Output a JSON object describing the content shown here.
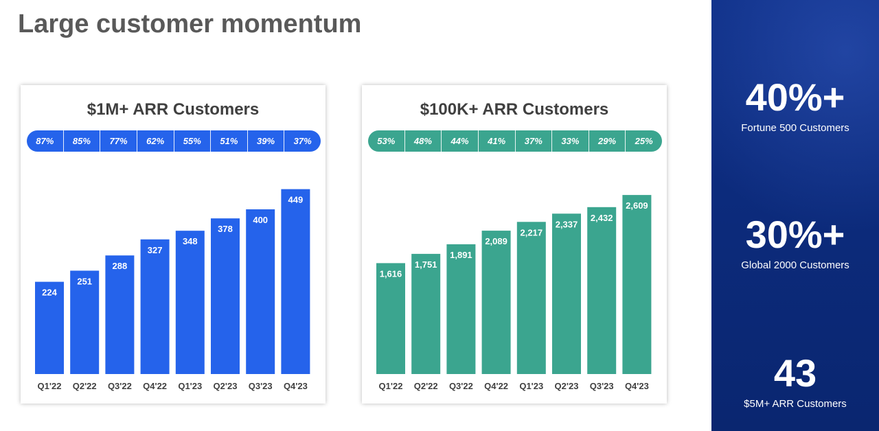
{
  "page": {
    "title": "Large customer momentum"
  },
  "colors": {
    "blue": "#2563eb",
    "teal": "#3ba58f",
    "panel": "#0b2a7a"
  },
  "sidebar": {
    "stats": [
      {
        "value": "40%+",
        "label": "Fortune 500 Customers"
      },
      {
        "value": "30%+",
        "label": "Global 2000 Customers"
      },
      {
        "value": "43",
        "label": "$5M+ ARR Customers"
      }
    ]
  },
  "chart_data": [
    {
      "type": "bar",
      "title": "$1M+ ARR Customers",
      "categories": [
        "Q1'22",
        "Q2'22",
        "Q3'22",
        "Q4'22",
        "Q1'23",
        "Q2'23",
        "Q3'23",
        "Q4'23"
      ],
      "values": [
        224,
        251,
        288,
        327,
        348,
        378,
        400,
        449
      ],
      "value_labels": [
        "224",
        "251",
        "288",
        "327",
        "348",
        "378",
        "400",
        "449"
      ],
      "growth_labels": [
        "87%",
        "85%",
        "77%",
        "62%",
        "55%",
        "51%",
        "39%",
        "37%"
      ],
      "ylim": [
        0,
        500
      ],
      "color": "#2563eb",
      "xlabel": "",
      "ylabel": "",
      "grid": false
    },
    {
      "type": "bar",
      "title": "$100K+ ARR Customers",
      "categories": [
        "Q1'22",
        "Q2'22",
        "Q3'22",
        "Q4'22",
        "Q1'23",
        "Q2'23",
        "Q3'23",
        "Q4'23"
      ],
      "values": [
        1616,
        1751,
        1891,
        2089,
        2217,
        2337,
        2432,
        2609
      ],
      "value_labels": [
        "1,616",
        "1,751",
        "1,891",
        "2,089",
        "2,217",
        "2,337",
        "2,432",
        "2,609"
      ],
      "growth_labels": [
        "53%",
        "48%",
        "44%",
        "41%",
        "37%",
        "33%",
        "29%",
        "25%"
      ],
      "ylim": [
        0,
        3000
      ],
      "color": "#3ba58f",
      "xlabel": "",
      "ylabel": "",
      "grid": false
    }
  ]
}
